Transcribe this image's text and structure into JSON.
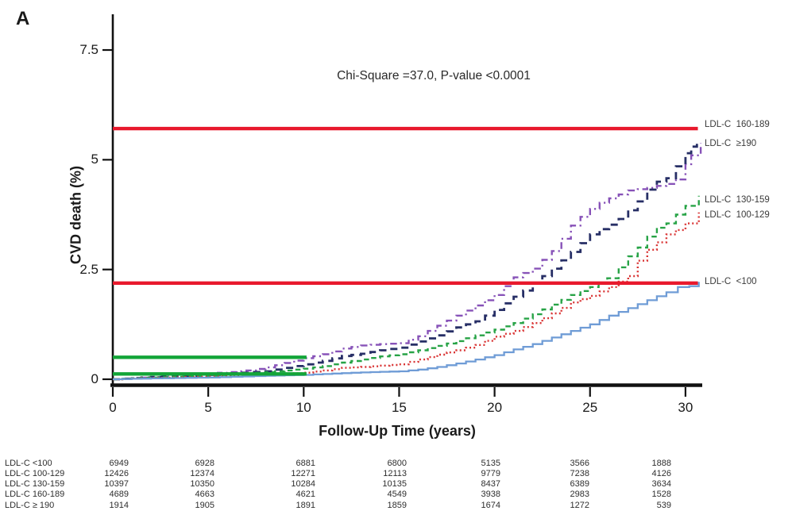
{
  "page": {
    "panel_label": "A"
  },
  "chart_data": {
    "type": "line",
    "title_annotation": "Chi-Square =37.0, P-value <0.0001",
    "xlabel": "Follow-Up Time (years)",
    "ylabel": "CVD death (%)",
    "xlim": [
      0,
      30.8
    ],
    "ylim": [
      0,
      7.9
    ],
    "xticks": [
      0,
      5,
      10,
      15,
      20,
      25,
      30
    ],
    "yticks": [
      0,
      2.5,
      5,
      7.5
    ],
    "grid": false,
    "legend_position": "right-edge-curve-labels",
    "series": [
      {
        "name": "LDL-C >=190",
        "label": "LDL-C  ≥190",
        "color": "#8752b8",
        "style": "dashdot",
        "label_y_value": 5.35,
        "points": [
          [
            0,
            0
          ],
          [
            2,
            0.05
          ],
          [
            5,
            0.13
          ],
          [
            7,
            0.2
          ],
          [
            8,
            0.27
          ],
          [
            9,
            0.37
          ],
          [
            10,
            0.48
          ],
          [
            11,
            0.57
          ],
          [
            12,
            0.7
          ],
          [
            13,
            0.77
          ],
          [
            14,
            0.8
          ],
          [
            15,
            0.82
          ],
          [
            16,
            0.98
          ],
          [
            17,
            1.22
          ],
          [
            18,
            1.45
          ],
          [
            19,
            1.68
          ],
          [
            20,
            1.92
          ],
          [
            20.5,
            2.12
          ],
          [
            21,
            2.32
          ],
          [
            22,
            2.52
          ],
          [
            23,
            2.92
          ],
          [
            23.5,
            3.2
          ],
          [
            24,
            3.5
          ],
          [
            24.5,
            3.7
          ],
          [
            25,
            3.88
          ],
          [
            25.5,
            4.02
          ],
          [
            26,
            4.12
          ],
          [
            27,
            4.3
          ],
          [
            28,
            4.36
          ],
          [
            29,
            4.45
          ],
          [
            29.5,
            4.55
          ],
          [
            30,
            4.9
          ],
          [
            30.3,
            5.1
          ],
          [
            30.8,
            5.38
          ]
        ]
      },
      {
        "name": "LDL-C 160-189",
        "label": "LDL-C  160-189",
        "color": "#272f66",
        "style": "longdash",
        "label_y_value": 5.78,
        "points": [
          [
            0,
            0
          ],
          [
            2,
            0.05
          ],
          [
            5,
            0.1
          ],
          [
            8,
            0.18
          ],
          [
            9,
            0.26
          ],
          [
            10,
            0.34
          ],
          [
            11,
            0.42
          ],
          [
            12,
            0.53
          ],
          [
            13,
            0.58
          ],
          [
            14,
            0.66
          ],
          [
            15,
            0.72
          ],
          [
            16,
            0.86
          ],
          [
            17,
            1.0
          ],
          [
            18,
            1.18
          ],
          [
            19,
            1.32
          ],
          [
            20,
            1.58
          ],
          [
            21,
            1.88
          ],
          [
            21.5,
            2.02
          ],
          [
            22,
            2.18
          ],
          [
            23,
            2.52
          ],
          [
            24,
            2.9
          ],
          [
            25,
            3.3
          ],
          [
            25.5,
            3.42
          ],
          [
            26,
            3.52
          ],
          [
            26.5,
            3.65
          ],
          [
            27,
            3.85
          ],
          [
            27.5,
            4.05
          ],
          [
            28,
            4.32
          ],
          [
            28.5,
            4.5
          ],
          [
            29,
            4.58
          ],
          [
            29.5,
            4.85
          ],
          [
            30,
            5.15
          ],
          [
            30.3,
            5.3
          ],
          [
            30.6,
            5.45
          ]
        ]
      },
      {
        "name": "LDL-C 130-159",
        "label": "LDL-C  130-159",
        "color": "#27a346",
        "style": "dashed",
        "label_y_value": 4.07,
        "points": [
          [
            0,
            0
          ],
          [
            2,
            0.04
          ],
          [
            5,
            0.08
          ],
          [
            8,
            0.16
          ],
          [
            10,
            0.24
          ],
          [
            11,
            0.3
          ],
          [
            12,
            0.38
          ],
          [
            13,
            0.45
          ],
          [
            14,
            0.52
          ],
          [
            15,
            0.57
          ],
          [
            16,
            0.66
          ],
          [
            17,
            0.76
          ],
          [
            18,
            0.87
          ],
          [
            19,
            1.0
          ],
          [
            20,
            1.13
          ],
          [
            21,
            1.28
          ],
          [
            22,
            1.48
          ],
          [
            23,
            1.7
          ],
          [
            24,
            1.92
          ],
          [
            25,
            2.1
          ],
          [
            25.9,
            2.3
          ],
          [
            26.5,
            2.55
          ],
          [
            27,
            2.8
          ],
          [
            27.5,
            3.0
          ],
          [
            28,
            3.25
          ],
          [
            28.5,
            3.45
          ],
          [
            29,
            3.55
          ],
          [
            29.5,
            3.75
          ],
          [
            30,
            3.95
          ],
          [
            30.7,
            4.18
          ]
        ]
      },
      {
        "name": "LDL-C 100-129",
        "label": "LDL-C  100-129",
        "color": "#d93434",
        "style": "dotted",
        "label_y_value": 3.72,
        "points": [
          [
            0,
            0
          ],
          [
            2,
            0.03
          ],
          [
            5,
            0.06
          ],
          [
            8,
            0.1
          ],
          [
            10,
            0.15
          ],
          [
            11,
            0.2
          ],
          [
            12,
            0.26
          ],
          [
            13,
            0.28
          ],
          [
            14,
            0.31
          ],
          [
            15,
            0.34
          ],
          [
            16,
            0.45
          ],
          [
            17,
            0.56
          ],
          [
            18,
            0.66
          ],
          [
            19,
            0.78
          ],
          [
            20,
            0.97
          ],
          [
            21,
            1.1
          ],
          [
            22,
            1.28
          ],
          [
            23,
            1.5
          ],
          [
            24,
            1.75
          ],
          [
            25,
            1.9
          ],
          [
            26,
            2.1
          ],
          [
            27,
            2.35
          ],
          [
            27.5,
            2.7
          ],
          [
            28,
            2.95
          ],
          [
            28.5,
            3.12
          ],
          [
            29,
            3.3
          ],
          [
            29.5,
            3.4
          ],
          [
            30,
            3.55
          ],
          [
            30.7,
            3.8
          ]
        ]
      },
      {
        "name": "LDL-C <100",
        "label": "LDL-C  <100",
        "color": "#6f9cd6",
        "style": "solid",
        "label_y_value": 2.2,
        "points": [
          [
            0,
            0
          ],
          [
            2,
            0.02
          ],
          [
            5,
            0.04
          ],
          [
            8,
            0.08
          ],
          [
            10,
            0.1
          ],
          [
            12,
            0.14
          ],
          [
            14,
            0.17
          ],
          [
            15,
            0.18
          ],
          [
            16,
            0.22
          ],
          [
            17,
            0.28
          ],
          [
            18,
            0.36
          ],
          [
            19,
            0.45
          ],
          [
            20,
            0.55
          ],
          [
            21,
            0.68
          ],
          [
            22,
            0.8
          ],
          [
            23,
            0.95
          ],
          [
            24,
            1.1
          ],
          [
            25,
            1.25
          ],
          [
            26,
            1.45
          ],
          [
            27,
            1.62
          ],
          [
            28,
            1.8
          ],
          [
            29,
            1.98
          ],
          [
            29.6,
            2.1
          ],
          [
            30.2,
            2.12
          ],
          [
            30.7,
            2.22
          ]
        ]
      }
    ],
    "reference_lines": [
      {
        "name": "red-line-upper",
        "color": "#e8192c",
        "y_value": 5.71,
        "x_from": 0,
        "x_to": 30.65
      },
      {
        "name": "red-line-lower",
        "color": "#e8192c",
        "y_value": 2.19,
        "x_from": 0,
        "x_to": 30.65
      },
      {
        "name": "green-line-upper",
        "color": "#13a538",
        "y_value": 0.5,
        "x_from": 0,
        "x_to": 10.15
      },
      {
        "name": "green-line-lower",
        "color": "#13a538",
        "y_value": 0.12,
        "x_from": 0,
        "x_to": 10.15
      }
    ],
    "risk_table": {
      "time_points": [
        0,
        5,
        10,
        15,
        20,
        25,
        30
      ],
      "rows": [
        {
          "label": "LDL-C <100",
          "counts": [
            "6949",
            "6928",
            "6881",
            "6800",
            "5135",
            "3566",
            "1888"
          ]
        },
        {
          "label": "LDL-C 100-129",
          "counts": [
            "12426",
            "12374",
            "12271",
            "12113",
            "9779",
            "7238",
            "4126"
          ]
        },
        {
          "label": "LDL-C 130-159",
          "counts": [
            "10397",
            "10350",
            "10284",
            "10135",
            "8437",
            "6389",
            "3634"
          ]
        },
        {
          "label": "LDL-C 160-189",
          "counts": [
            "4689",
            "4663",
            "4621",
            "4549",
            "3938",
            "2983",
            "1528"
          ]
        },
        {
          "label": "LDL-C ≥ 190",
          "counts": [
            "1914",
            "1905",
            "1891",
            "1859",
            "1674",
            "1272",
            "539"
          ]
        }
      ]
    }
  }
}
